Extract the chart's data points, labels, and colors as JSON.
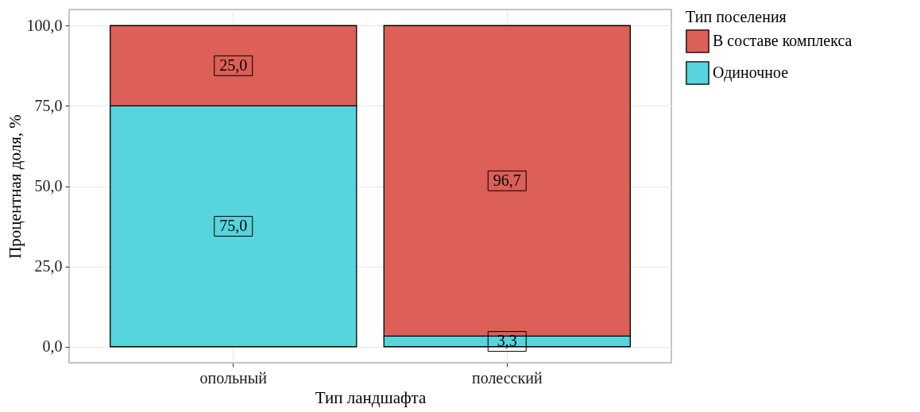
{
  "chart_data": {
    "type": "bar",
    "stacked": true,
    "xlabel": "Тип ландшафта",
    "ylabel": "Процентная доля, %",
    "legend_title": "Тип поселения",
    "categories": [
      "опольный",
      "полесский"
    ],
    "series": [
      {
        "name": "Одиночное",
        "color": "#57d4dc",
        "values": [
          75.0,
          3.3
        ],
        "value_labels": [
          "75,0",
          "3,3"
        ]
      },
      {
        "name": "В составе комплекса",
        "color": "#dc5f58",
        "values": [
          25.0,
          96.7
        ],
        "value_labels": [
          "25,0",
          "96,7"
        ]
      }
    ],
    "ylim": [
      -5,
      105
    ],
    "yticks": [
      {
        "value": 0,
        "label": "0,0"
      },
      {
        "value": 25,
        "label": "25,0"
      },
      {
        "value": 50,
        "label": "50,0"
      },
      {
        "value": 75,
        "label": "75,0"
      },
      {
        "value": 100,
        "label": "100,0"
      }
    ],
    "grid": true,
    "legend": "right"
  }
}
